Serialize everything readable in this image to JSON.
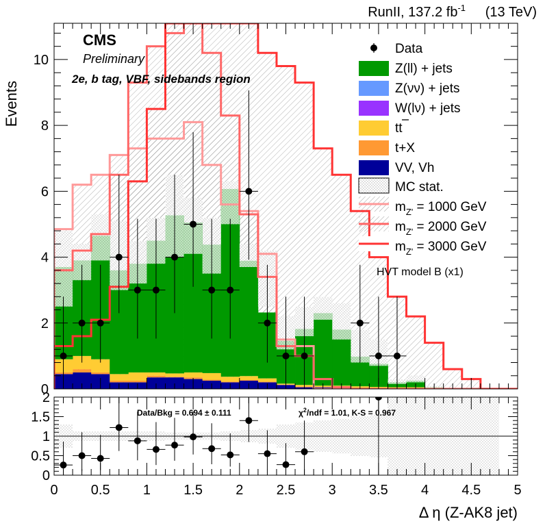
{
  "header": {
    "lumi_text": "RunII, 137.2 fb",
    "lumi_sup": "-1",
    "energy_text": "(13 TeV)",
    "cms": "CMS",
    "preliminary": "Preliminary",
    "region": "2e, b tag, VBF, sidebands region"
  },
  "legend": {
    "data": "Data",
    "zll": "Z(ll) + jets",
    "znn": "Z(νν) + jets",
    "wln": "W(lν) + jets",
    "tt": "tt",
    "tx": "t+X",
    "vv": "VV, Vh",
    "mcstat": "MC stat.",
    "sig_prefix": "m",
    "sig_sub": "Z'",
    "sig1": " = 1000 GeV",
    "sig2": " = 2000 GeV",
    "sig3": " = 3000 GeV",
    "model": "HVT model B (x1)"
  },
  "ratio_text": {
    "databkg": "Data/Bkg = 0.694 ± 0.111",
    "chi2_a": "χ",
    "chi2_sup": "2",
    "chi2_b": "/ndf = 1.01,   K-S = 0.967"
  },
  "colors": {
    "zll": "#009900",
    "znn": "#6699ff",
    "wln": "#9933ff",
    "tt": "#ffcc33",
    "tx": "#ff9933",
    "vv": "#000099",
    "sig1": "#ff9999",
    "sig2": "#ff6666",
    "sig3": "#ff3333"
  },
  "chart_data": [
    {
      "type": "bar",
      "stacked": true,
      "ylabel": "Events",
      "xlim": [
        0,
        5
      ],
      "ylim": [
        0,
        11.1
      ],
      "yticks": [
        0,
        2,
        4,
        6,
        8,
        10
      ],
      "bin_edges": [
        0,
        0.2,
        0.4,
        0.6,
        0.8,
        1.0,
        1.2,
        1.4,
        1.6,
        1.8,
        2.0,
        2.2,
        2.4,
        2.6,
        2.8,
        3.0,
        3.2,
        3.4,
        3.6,
        3.8,
        4.0,
        4.2,
        4.4,
        4.6,
        4.8,
        5.0
      ],
      "stack_order": [
        "vv",
        "tx",
        "tt",
        "wln",
        "znn",
        "zll"
      ],
      "stack": {
        "vv": [
          0.45,
          0.5,
          0.45,
          0.2,
          0.2,
          0.35,
          0.35,
          0.3,
          0.25,
          0.2,
          0.25,
          0.2,
          0.12,
          0.05,
          0.05,
          0.05,
          0.03,
          0.02,
          0.02,
          0.02,
          0,
          0,
          0,
          0,
          0
        ],
        "tx": [
          0.05,
          0.1,
          0.05,
          0.05,
          0.05,
          0.05,
          0.02,
          0.05,
          0.03,
          0.02,
          0.02,
          0.02,
          0.01,
          0.02,
          0.01,
          0.01,
          0.01,
          0.01,
          0.01,
          0.01,
          0,
          0,
          0,
          0,
          0
        ],
        "tt": [
          0.4,
          0.4,
          0.4,
          0.2,
          0.25,
          0.1,
          0.1,
          0.15,
          0.2,
          0.15,
          0.12,
          0.1,
          0.03,
          0.05,
          0.04,
          0.04,
          0.04,
          0.03,
          0.02,
          0.02,
          0,
          0,
          0,
          0,
          0
        ],
        "wln": [
          0,
          0,
          0,
          0,
          0,
          0,
          0,
          0,
          0,
          0,
          0,
          0,
          0,
          0,
          0,
          0,
          0,
          0,
          0,
          0,
          0,
          0,
          0,
          0,
          0
        ],
        "znn": [
          0,
          0,
          0,
          0,
          0,
          0,
          0,
          0,
          0,
          0,
          0,
          0,
          0,
          0,
          0,
          0,
          0,
          0,
          0,
          0,
          0,
          0,
          0,
          0,
          0
        ],
        "zll": [
          2.8,
          2.9,
          3.75,
          3.15,
          3.3,
          4.0,
          4.8,
          4.55,
          3.9,
          5.7,
          3.5,
          2.0,
          1.3,
          1.7,
          2.2,
          1.7,
          0.9,
          0.7,
          0.15,
          0.2,
          0.05,
          0,
          0,
          0,
          0
        ]
      },
      "mc_stat_upper": [
        4.8,
        4.4,
        5.3,
        5.1,
        4.5,
        5.2,
        6.5,
        5.8,
        5.2,
        6.3,
        4.4,
        4.2,
        2.2,
        2.5,
        2.8,
        2.6,
        1.8,
        1.5,
        0.3,
        0.4,
        0.1,
        0,
        0,
        0,
        0
      ],
      "mc_stat_lower": [
        2.5,
        3.3,
        3.9,
        3.0,
        3.2,
        3.8,
        4.0,
        4.1,
        3.5,
        5.0,
        3.7,
        2.5,
        1.2,
        1.6,
        2.1,
        1.5,
        0.8,
        0.7,
        0.15,
        0.2,
        0,
        0,
        0,
        0,
        0
      ],
      "data": {
        "x": [
          0.1,
          0.3,
          0.5,
          0.7,
          0.9,
          1.1,
          1.3,
          1.5,
          1.7,
          1.9,
          2.1,
          2.3,
          2.5,
          2.7,
          3.3,
          3.5,
          3.7
        ],
        "y": [
          1,
          2,
          2,
          4,
          3,
          3,
          4,
          5,
          3,
          3,
          6,
          2,
          1,
          1,
          2,
          1,
          1
        ]
      },
      "signals": [
        {
          "name": "m_Z' = 1000 GeV",
          "values": [
            4.85,
            6.2,
            6.5,
            7.1,
            7.3,
            7.6,
            7.6,
            8.1,
            6.8,
            5.6,
            5.4,
            4.1,
            1.5,
            1.3,
            0,
            0,
            0,
            0,
            0,
            0,
            0,
            0,
            0,
            0,
            0
          ]
        },
        {
          "name": "m_Z' = 2000 GeV",
          "values": [
            3.6,
            4.2,
            4.7,
            6.5,
            9.3,
            10.4,
            10.8,
            11.1,
            10.2,
            8.3,
            5.3,
            3.4,
            1.3,
            1.0,
            0.3,
            0.05,
            0,
            0,
            0,
            0,
            0,
            0,
            0,
            0,
            0
          ]
        },
        {
          "name": "m_Z' = 3000 GeV",
          "values": [
            1.3,
            1.6,
            2.1,
            3.1,
            6.3,
            8.5,
            11.1,
            11.1,
            11.1,
            11.1,
            11.1,
            10.2,
            9.8,
            9.3,
            7.3,
            6.5,
            5.4,
            4.0,
            2.8,
            2.2,
            1.4,
            0.6,
            0.3,
            0.0,
            0.0
          ]
        }
      ]
    },
    {
      "type": "scatter",
      "xlabel": "Δ η (Z-AK8 jet)",
      "ylabel": "",
      "xlim": [
        0,
        5
      ],
      "ylim": [
        0,
        2
      ],
      "yticks": [
        0,
        0.5,
        1,
        1.5,
        2
      ],
      "xticks": [
        0,
        0.5,
        1,
        1.5,
        2,
        2.5,
        3,
        3.5,
        4,
        4.5,
        5
      ],
      "points": {
        "x": [
          0.1,
          0.3,
          0.5,
          0.7,
          0.9,
          1.1,
          1.3,
          1.5,
          1.7,
          1.9,
          2.1,
          2.3,
          2.5,
          2.7,
          3.5
        ],
        "y": [
          0.26,
          0.5,
          0.43,
          1.22,
          0.88,
          0.66,
          0.77,
          0.98,
          0.68,
          0.52,
          1.4,
          0.55,
          0.27,
          0.6,
          2.0
        ]
      },
      "err_lo": [
        0.26,
        0.4,
        0.3,
        0.6,
        0.5,
        0.4,
        0.4,
        0.45,
        0.4,
        0.3,
        0.55,
        0.4,
        0.27,
        0.6,
        2.0
      ],
      "err_hi": [
        0.6,
        0.6,
        0.6,
        0.8,
        0.75,
        0.7,
        0.7,
        0.65,
        0.65,
        0.55,
        0.7,
        0.6,
        0.55,
        0.8,
        0.2
      ],
      "band_hw": [
        0.3,
        0.12,
        0.12,
        0.12,
        0.12,
        0.12,
        0.1,
        0.1,
        0.1,
        0.13,
        0.15,
        0.2,
        0.3,
        0.35,
        0.4,
        0.45,
        0.5,
        0.55,
        1.0,
        1.0,
        1.0,
        1.0,
        1.0,
        1.0,
        0
      ]
    }
  ]
}
